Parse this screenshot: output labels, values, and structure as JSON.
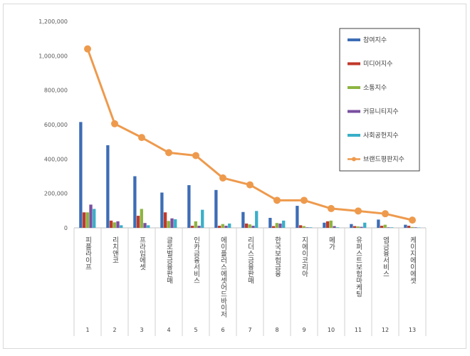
{
  "chart_data": {
    "type": "bar",
    "title": "",
    "xlabel": "",
    "ylabel": "",
    "ylim": [
      0,
      1200000
    ],
    "yticks": [
      "0",
      "200,000",
      "400,000",
      "600,000",
      "800,000",
      "1,000,000",
      "1,200,000"
    ],
    "grid": false,
    "legend_position": "top-right",
    "category_numbers": [
      "1",
      "2",
      "3",
      "4",
      "5",
      "6",
      "7",
      "8",
      "9",
      "10",
      "11",
      "12",
      "13"
    ],
    "categories": [
      "피플라이프",
      "리치앤코",
      "프라임에셋",
      "글로벌금융판매",
      "인카금융서비스",
      "에이플러스에셋어드바이저",
      "리더스금융판매",
      "한국보험금융",
      "지에이코리아",
      "메가",
      "유퍼스트보험마케팅",
      "엠금융서비스",
      "케이지에이에셋"
    ],
    "series": [
      {
        "name": "참여지수",
        "kind": "bar",
        "color": "#3D6DB5",
        "values": [
          615000,
          480000,
          300000,
          205000,
          248000,
          220000,
          92000,
          58000,
          128000,
          30000,
          22000,
          48000,
          18000
        ]
      },
      {
        "name": "미디어지수",
        "kind": "bar",
        "color": "#C0392B",
        "values": [
          90000,
          42000,
          70000,
          90000,
          12000,
          12000,
          25000,
          10000,
          15000,
          38000,
          10000,
          12000,
          12000
        ]
      },
      {
        "name": "소통지수",
        "kind": "bar",
        "color": "#8DB542",
        "values": [
          90000,
          32000,
          110000,
          40000,
          38000,
          22000,
          20000,
          28000,
          10000,
          42000,
          8000,
          18000,
          5000
        ]
      },
      {
        "name": "커뮤니티지수",
        "kind": "bar",
        "color": "#7A4FA0",
        "values": [
          135000,
          38000,
          28000,
          55000,
          12000,
          12000,
          12000,
          25000,
          3000,
          10000,
          6000,
          3000,
          3000
        ]
      },
      {
        "name": "사회공헌지수",
        "kind": "bar",
        "color": "#3AAFC8",
        "values": [
          110000,
          15000,
          15000,
          50000,
          105000,
          25000,
          98000,
          42000,
          3000,
          3000,
          30000,
          3000,
          2000
        ]
      },
      {
        "name": "브랜드평판지수",
        "kind": "line",
        "color": "#EE9A4D",
        "values": [
          1040000,
          605000,
          525000,
          437000,
          420000,
          290000,
          250000,
          160000,
          160000,
          112000,
          98000,
          82000,
          45000
        ]
      }
    ]
  }
}
